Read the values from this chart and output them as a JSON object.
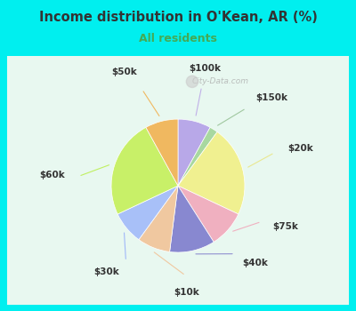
{
  "title": "Income distribution in O'Kean, AR (%)",
  "subtitle": "All residents",
  "labels": [
    "$100k",
    "$150k",
    "$20k",
    "$75k",
    "$40k",
    "$10k",
    "$30k",
    "$60k",
    "$50k"
  ],
  "sizes": [
    8,
    2,
    22,
    9,
    11,
    8,
    8,
    24,
    8
  ],
  "colors": [
    "#b8a8e8",
    "#a8d8a0",
    "#f0f090",
    "#f0b0c0",
    "#8888d0",
    "#f0c8a0",
    "#a8c0f8",
    "#c8f068",
    "#f0b860"
  ],
  "bg_cyan": "#00efef",
  "bg_chart": "#e8f8f0",
  "title_color": "#333333",
  "subtitle_color": "#44aa55",
  "startangle": 90,
  "label_fontsize": 7.5,
  "watermark": "City-Data.com",
  "label_color": "#333333"
}
